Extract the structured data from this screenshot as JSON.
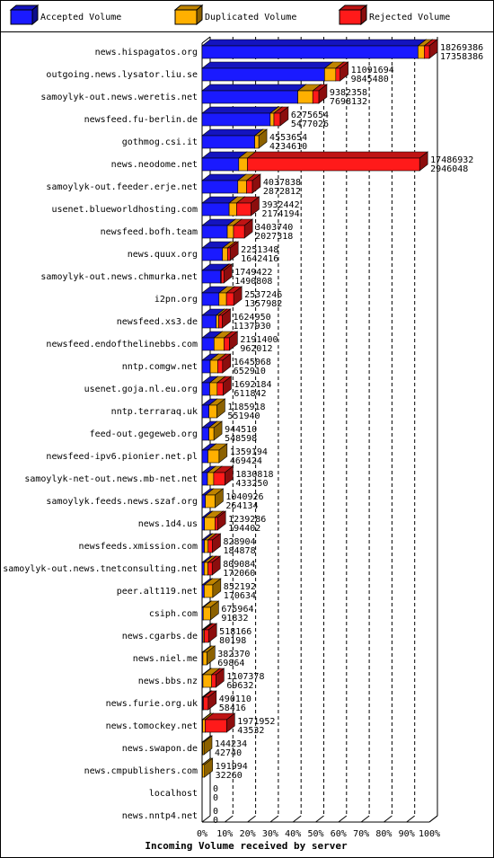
{
  "chart_data": {
    "type": "bar3d-stacked-horizontal",
    "xlabel": "Incoming Volume received by server",
    "categories": [
      "news.hispagatos.org",
      "outgoing.news.lysator.liu.se",
      "samoylyk-out.news.weretis.net",
      "newsfeed.fu-berlin.de",
      "gothmog.csi.it",
      "news.neodome.net",
      "samoylyk-out.feeder.erje.net",
      "usenet.blueworldhosting.com",
      "newsfeed.bofh.team",
      "news.quux.org",
      "samoylyk-out.news.chmurka.net",
      "i2pn.org",
      "newsfeed.xs3.de",
      "newsfeed.endofthelinebbs.com",
      "nntp.comgw.net",
      "usenet.goja.nl.eu.org",
      "nntp.terraraq.uk",
      "feed-out.gegeweb.org",
      "newsfeed-ipv6.pionier.net.pl",
      "samoylyk-net-out.news.mb-net.net",
      "samoylyk.feeds.news.szaf.org",
      "news.1d4.us",
      "newsfeeds.xmission.com",
      "samoylyk-out.news.tnetconsulting.net",
      "peer.alt119.net",
      "csiph.com",
      "news.cgarbs.de",
      "news.niel.me",
      "news.bbs.nz",
      "news.furie.org.uk",
      "news.tomockey.net",
      "news.swapon.de",
      "news.cmpublishers.com",
      "localhost",
      "news.nntp4.net"
    ],
    "totals": [
      18269386,
      11091694,
      9382358,
      6275654,
      4553654,
      17486932,
      4037838,
      3932442,
      3403740,
      2251348,
      1749422,
      2537246,
      1624950,
      2191400,
      1645068,
      1692184,
      1185918,
      944510,
      1359194,
      1830818,
      1040926,
      1239286,
      828904,
      809084,
      852192,
      675964,
      518166,
      382370,
      1107378,
      490110,
      1971952,
      144234,
      191994,
      0,
      0
    ],
    "series": [
      {
        "name": "Accepted Volume",
        "color": "#1a1aff",
        "values": [
          17358386,
          9845480,
          7698132,
          5477026,
          4234610,
          2946048,
          2872812,
          2174194,
          2027318,
          1642416,
          1490808,
          1357982,
          1137930,
          962012,
          652910,
          611842,
          551940,
          548598,
          469424,
          433250,
          264134,
          194402,
          184878,
          172060,
          170634,
          91832,
          80198,
          69864,
          69632,
          58416,
          43532,
          42740,
          32260,
          0,
          0
        ]
      },
      {
        "name": "Duplicated Volume",
        "color": "#ffb000",
        "values": [
          500000,
          900000,
          1200000,
          300000,
          319044,
          700000,
          700000,
          600000,
          500000,
          400000,
          50000,
          600000,
          200000,
          800000,
          600000,
          600000,
          633978,
          395912,
          889770,
          500000,
          776792,
          844884,
          300000,
          300000,
          681558,
          584132,
          100000,
          312506,
          700000,
          50000,
          200000,
          101494,
          159734,
          0,
          0
        ]
      },
      {
        "name": "Rejected Volume",
        "color": "#ff1a1a",
        "values": [
          411000,
          346214,
          484226,
          498628,
          0,
          13840884,
          465026,
          1158248,
          876422,
          208932,
          208614,
          579264,
          287020,
          429388,
          392158,
          480342,
          0,
          0,
          0,
          897568,
          0,
          200000,
          344026,
          337024,
          0,
          0,
          337968,
          0,
          337746,
          381694,
          1728420,
          0,
          0,
          0,
          0
        ]
      }
    ],
    "xlim": [
      0,
      18269386
    ],
    "xticks": [
      {
        "value": 0,
        "label": "0%"
      },
      {
        "value": 1826938.6,
        "label": "10%"
      },
      {
        "value": 3653877.2,
        "label": "20%"
      },
      {
        "value": 5480815.8,
        "label": "30%"
      },
      {
        "value": 7307754.4,
        "label": "40%"
      },
      {
        "value": 9134693,
        "label": "50%"
      },
      {
        "value": 10961631.6,
        "label": "60%"
      },
      {
        "value": 12788570.2,
        "label": "70%"
      },
      {
        "value": 14615508.8,
        "label": "80%"
      },
      {
        "value": 16442447.4,
        "label": "90%"
      },
      {
        "value": 18269386,
        "label": "100%"
      }
    ],
    "grid": true
  }
}
